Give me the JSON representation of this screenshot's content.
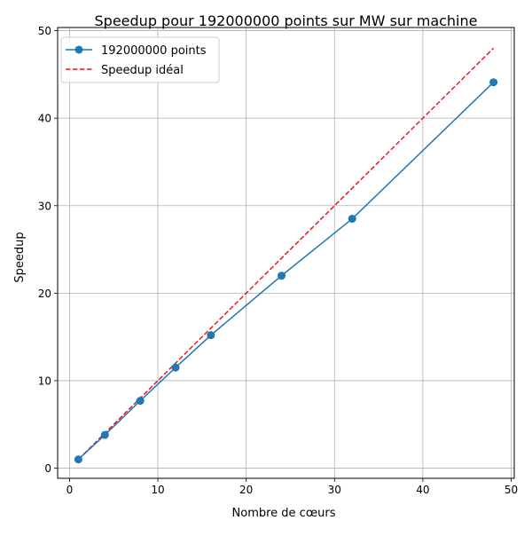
{
  "chart_data": {
    "type": "line",
    "title": "Speedup pour 192000000 points sur MW sur machine",
    "xlabel": "Nombre de cœurs",
    "ylabel": "Speedup",
    "xlim": [
      -1.35,
      50.35
    ],
    "ylim": [
      -1.16,
      50.36
    ],
    "x_ticks": [
      0,
      10,
      20,
      30,
      40,
      50
    ],
    "y_ticks": [
      0,
      10,
      20,
      30,
      40,
      50
    ],
    "grid": true,
    "legend_position": "top-left",
    "series": [
      {
        "name": "192000000 points",
        "style": "solid-with-circle-markers",
        "color": "#1f77b4",
        "x": [
          1,
          4,
          8,
          12,
          16,
          24,
          32,
          48
        ],
        "y": [
          1.0,
          3.8,
          7.7,
          11.5,
          15.2,
          22.0,
          28.5,
          44.1
        ]
      },
      {
        "name": "Speedup idéal",
        "style": "dashed",
        "color": "#e41a1c",
        "x": [
          1,
          4,
          8,
          12,
          16,
          24,
          32,
          48
        ],
        "y": [
          1,
          4,
          8,
          12,
          16,
          24,
          32,
          48
        ]
      }
    ]
  }
}
